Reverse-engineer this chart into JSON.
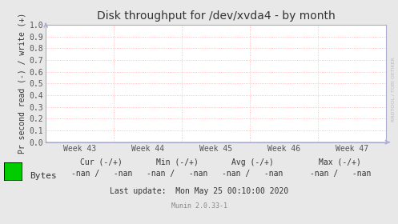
{
  "title": "Disk throughput for /dev/xvda4 - by month",
  "ylabel": "Pr second read (-) / write (+)",
  "ylim": [
    0.0,
    1.0
  ],
  "yticks": [
    0.0,
    0.1,
    0.2,
    0.3,
    0.4,
    0.5,
    0.6,
    0.7,
    0.8,
    0.9,
    1.0
  ],
  "xtick_labels": [
    "Week 43",
    "Week 44",
    "Week 45",
    "Week 46",
    "Week 47"
  ],
  "bg_color": "#e8e8e8",
  "plot_bg_color": "#ffffff",
  "grid_color": "#ffb0b0",
  "title_color": "#333333",
  "axis_color": "#333333",
  "tick_color": "#555555",
  "legend_label": "Bytes",
  "legend_color": "#00cc00",
  "cur_label": "Cur (-/+)",
  "min_label": "Min (-/+)",
  "avg_label": "Avg (-/+)",
  "max_label": "Max (-/+)",
  "cur_val": "-nan /   -nan",
  "min_val": "-nan /   -nan",
  "avg_val": "-nan /   -nan",
  "max_val": "-nan /   -nan",
  "last_update": "Last update:  Mon May 25 00:10:00 2020",
  "munin_version": "Munin 2.0.33-1",
  "watermark": "RRDTOOL / TOBI OETIKER",
  "arrow_color": "#aaaadd",
  "line_color": "#0000cc",
  "spine_color": "#aaaacc"
}
